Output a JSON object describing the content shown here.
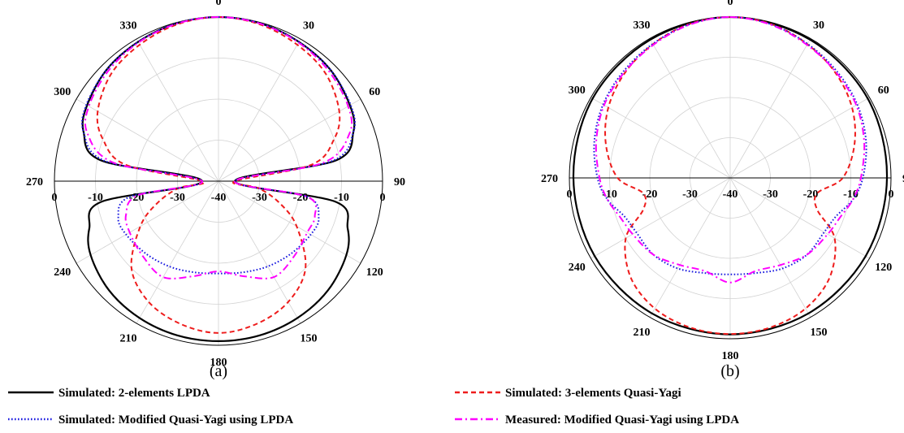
{
  "chart_data": [
    {
      "type": "polar",
      "caption": "(a)",
      "angle_ticks": [
        "0",
        "30",
        "60",
        "90",
        "120",
        "150",
        "180",
        "210",
        "240",
        "270",
        "300",
        "330"
      ],
      "radial_ticks": [
        "0",
        "-10",
        "-20",
        "-30",
        "-40",
        "-30",
        "-20",
        "-10",
        "0"
      ],
      "radial_range_dB": [
        -40,
        0
      ],
      "grid": true,
      "series": [
        {
          "name": "Simulated: 2-elements LPDA",
          "angles_deg": [
            90,
            100,
            110,
            120,
            135,
            150,
            165,
            180,
            195,
            210,
            225,
            240,
            250,
            260,
            270,
            280,
            290,
            300,
            315,
            330,
            345,
            0,
            15,
            30,
            45,
            60,
            70,
            80
          ],
          "values_dB": [
            -36,
            -11,
            -6.5,
            -4,
            -2.3,
            -1.5,
            -1.1,
            -1,
            -1.1,
            -1.5,
            -2.3,
            -4,
            -6.5,
            -11,
            -36,
            -11,
            -5,
            -3,
            -1.5,
            -0.8,
            -0.2,
            0,
            -0.2,
            -0.8,
            -1.5,
            -3,
            -5,
            -11
          ]
        },
        {
          "name": "Simulated: 3-elements Quasi-Yagi",
          "angles_deg": [
            90,
            100,
            110,
            120,
            135,
            150,
            165,
            180,
            195,
            210,
            225,
            240,
            250,
            260,
            270,
            280,
            290,
            300,
            315,
            330,
            345,
            0,
            15,
            30,
            45,
            60,
            70,
            80
          ],
          "values_dB": [
            -36,
            -30,
            -24,
            -18,
            -10,
            -6,
            -4,
            -3,
            -4,
            -6,
            -10,
            -18,
            -24,
            -30,
            -36,
            -17,
            -10,
            -6,
            -3,
            -1.6,
            -0.5,
            0,
            -0.5,
            -1.6,
            -3,
            -6,
            -10,
            -17
          ]
        },
        {
          "name": "Simulated: Modified Quasi-Yagi using LPDA",
          "angles_deg": [
            90,
            100,
            110,
            120,
            135,
            150,
            165,
            180,
            195,
            210,
            225,
            240,
            250,
            260,
            270,
            280,
            290,
            300,
            315,
            330,
            345,
            0,
            15,
            30,
            45,
            60,
            70,
            80
          ],
          "values_dB": [
            -36,
            -18,
            -14,
            -14,
            -15,
            -16,
            -17,
            -17.5,
            -17,
            -16,
            -15,
            -14,
            -14,
            -18,
            -36,
            -12,
            -5,
            -2.8,
            -1.5,
            -0.8,
            -0.2,
            0,
            -0.2,
            -0.8,
            -1.5,
            -2.8,
            -5,
            -12
          ]
        },
        {
          "name": "Measured: Modified Quasi-Yagi using LPDA",
          "angles_deg": [
            90,
            100,
            110,
            120,
            135,
            150,
            165,
            180,
            195,
            210,
            225,
            240,
            250,
            260,
            270,
            280,
            290,
            300,
            315,
            330,
            345,
            0,
            15,
            30,
            45,
            60,
            70,
            80
          ],
          "values_dB": [
            -36,
            -18,
            -15,
            -15,
            -14,
            -13,
            -16,
            -18,
            -16,
            -13,
            -14,
            -15,
            -16,
            -20,
            -36,
            -14,
            -6,
            -3.5,
            -2,
            -1,
            -0.3,
            0,
            -0.3,
            -1,
            -2,
            -3.5,
            -6,
            -14
          ]
        }
      ]
    },
    {
      "type": "polar",
      "caption": "(b)",
      "angle_ticks": [
        "0",
        "30",
        "60",
        "90",
        "120",
        "150",
        "180",
        "210",
        "240",
        "270",
        "300",
        "330"
      ],
      "radial_ticks": [
        "0",
        "-10",
        "-20",
        "-30",
        "-40",
        "-30",
        "-20",
        "-10",
        "0"
      ],
      "radial_range_dB": [
        -40,
        0
      ],
      "grid": true,
      "series": [
        {
          "name": "Simulated: 2-elements LPDA",
          "angles_deg": [
            0,
            30,
            60,
            90,
            120,
            150,
            180,
            210,
            240,
            270,
            300,
            330
          ],
          "values_dB": [
            0,
            -0.3,
            -0.5,
            -1,
            -1.1,
            -1.1,
            -1.1,
            -1.1,
            -1.1,
            -1,
            -0.5,
            -0.3
          ]
        },
        {
          "name": "Simulated: 3-elements Quasi-Yagi",
          "angles_deg": [
            0,
            15,
            30,
            45,
            60,
            75,
            90,
            100,
            110,
            120,
            135,
            150,
            165,
            180,
            195,
            210,
            225,
            240,
            250,
            260,
            270,
            285,
            300,
            315,
            330,
            345
          ],
          "values_dB": [
            0,
            -0.4,
            -1.6,
            -3,
            -5,
            -8,
            -12,
            -18,
            -17,
            -10,
            -5,
            -2.5,
            -1.5,
            -1.2,
            -1.5,
            -2.5,
            -5,
            -10,
            -17,
            -18,
            -12,
            -8,
            -5,
            -3,
            -1.6,
            -0.4
          ]
        },
        {
          "name": "Simulated: Modified Quasi-Yagi using LPDA",
          "angles_deg": [
            0,
            15,
            30,
            45,
            60,
            75,
            90,
            100,
            110,
            120,
            135,
            150,
            165,
            180,
            195,
            210,
            225,
            240,
            250,
            260,
            270,
            285,
            300,
            315,
            330,
            345
          ],
          "values_dB": [
            0,
            -0.5,
            -1.5,
            -2.5,
            -3.5,
            -5,
            -7,
            -9,
            -12,
            -13,
            -13,
            -14,
            -15.5,
            -16,
            -15.5,
            -14,
            -13,
            -13,
            -12,
            -9,
            -7,
            -5,
            -3.5,
            -2.5,
            -1.5,
            -0.5
          ]
        },
        {
          "name": "Measured: Modified Quasi-Yagi using LPDA",
          "angles_deg": [
            0,
            15,
            30,
            45,
            60,
            75,
            90,
            100,
            110,
            120,
            135,
            150,
            165,
            180,
            195,
            210,
            225,
            240,
            250,
            260,
            270,
            285,
            300,
            315,
            330,
            345
          ],
          "values_dB": [
            0,
            -0.6,
            -1.8,
            -2.8,
            -3.8,
            -5.5,
            -7.5,
            -9,
            -11,
            -12,
            -13,
            -15,
            -16,
            -14,
            -16,
            -15,
            -13,
            -12,
            -11,
            -9,
            -7.5,
            -5.5,
            -3.8,
            -2.8,
            -1.8,
            -0.6
          ]
        }
      ]
    }
  ],
  "legend": [
    {
      "label": "Simulated: 2-elements LPDA",
      "color": "#000000",
      "dash": "solid"
    },
    {
      "label": "Simulated: 3-elements Quasi-Yagi",
      "color": "#ee1c1c",
      "dash": "dashed"
    },
    {
      "label": "Simulated: Modified Quasi-Yagi using LPDA",
      "color": "#1a1adf",
      "dash": "dotted"
    },
    {
      "label": "Measured: Modified Quasi-Yagi using LPDA",
      "color": "#ff00ff",
      "dash": "dash-dot"
    }
  ]
}
